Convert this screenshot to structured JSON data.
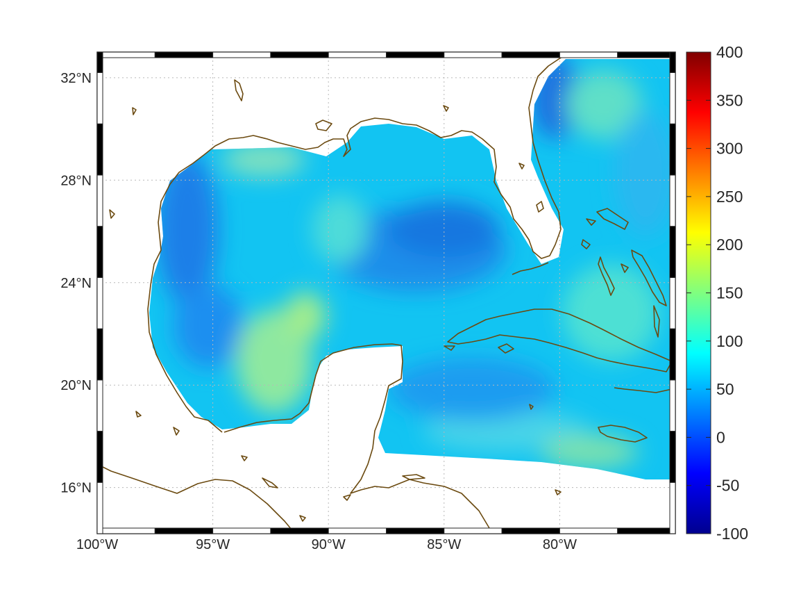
{
  "map": {
    "lon_range": [
      -100,
      -75
    ],
    "lat_range": [
      14.2,
      33
    ],
    "grid": true,
    "coastline_color": "#6b4a10",
    "x_ticks": [
      {
        "value": -100,
        "label": "100°W"
      },
      {
        "value": -95,
        "label": "95°W"
      },
      {
        "value": -90,
        "label": "90°W"
      },
      {
        "value": -85,
        "label": "85°W"
      },
      {
        "value": -80,
        "label": "80°W"
      }
    ],
    "y_ticks": [
      {
        "value": 32,
        "label": "32°N"
      },
      {
        "value": 28,
        "label": "28°N"
      },
      {
        "value": 24,
        "label": "24°N"
      },
      {
        "value": 20,
        "label": "20°N"
      },
      {
        "value": 16,
        "label": "16°N"
      }
    ]
  },
  "colorbar": {
    "colormap": "jet",
    "range": [
      -100,
      400
    ],
    "ticks": [
      "400",
      "350",
      "300",
      "250",
      "200",
      "150",
      "100",
      "50",
      "0",
      "-50",
      "-100"
    ]
  }
}
